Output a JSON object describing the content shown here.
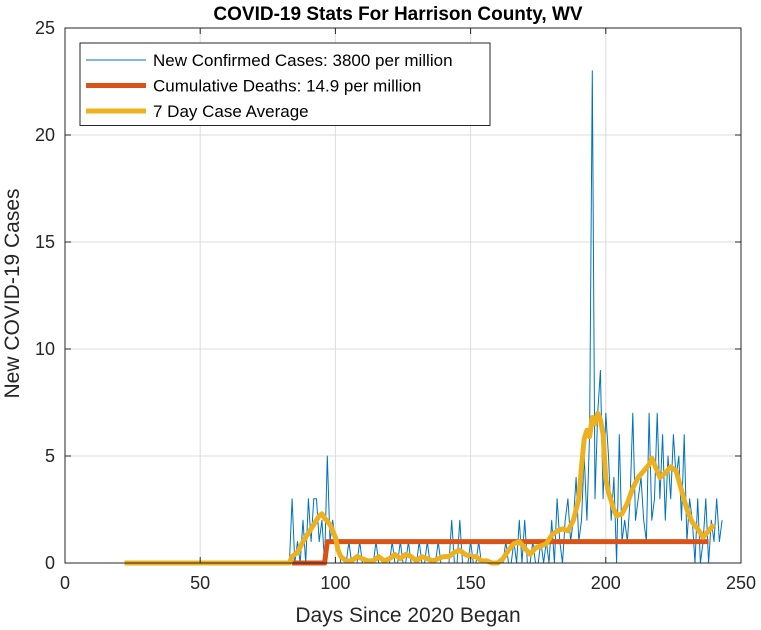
{
  "chart_data": {
    "type": "line",
    "title": "COVID-19 Stats For Harrison County, WV",
    "xlabel": "Days Since 2020 Began",
    "ylabel": "New COVID-19 Cases",
    "xlim": [
      0,
      250
    ],
    "ylim": [
      0,
      25
    ],
    "xticks": [
      0,
      50,
      100,
      150,
      200,
      250
    ],
    "yticks": [
      0,
      5,
      10,
      15,
      20,
      25
    ],
    "grid": true,
    "legend_position": "top-left",
    "series": [
      {
        "name": "New Confirmed Cases: 3800 per million",
        "color": "#0072BD",
        "style": "thin",
        "points": [
          [
            22,
            0
          ],
          [
            82,
            0
          ],
          [
            83,
            0
          ],
          [
            84,
            3
          ],
          [
            85,
            0
          ],
          [
            86,
            1
          ],
          [
            87,
            0
          ],
          [
            88,
            2
          ],
          [
            89,
            0
          ],
          [
            90,
            3
          ],
          [
            91,
            1
          ],
          [
            92,
            3
          ],
          [
            93,
            3
          ],
          [
            94,
            1
          ],
          [
            95,
            2
          ],
          [
            96,
            0
          ],
          [
            97,
            5
          ],
          [
            98,
            1
          ],
          [
            99,
            2
          ],
          [
            100,
            1
          ],
          [
            101,
            1
          ],
          [
            102,
            0
          ],
          [
            103,
            0
          ],
          [
            104,
            0
          ],
          [
            105,
            1
          ],
          [
            106,
            0
          ],
          [
            107,
            0
          ],
          [
            108,
            0
          ],
          [
            109,
            1
          ],
          [
            110,
            0
          ],
          [
            111,
            0
          ],
          [
            112,
            0
          ],
          [
            113,
            0
          ],
          [
            114,
            0
          ],
          [
            115,
            1
          ],
          [
            116,
            0
          ],
          [
            117,
            0
          ],
          [
            118,
            0
          ],
          [
            119,
            0
          ],
          [
            120,
            0
          ],
          [
            121,
            1
          ],
          [
            122,
            0
          ],
          [
            123,
            0
          ],
          [
            124,
            1
          ],
          [
            125,
            0
          ],
          [
            126,
            0
          ],
          [
            127,
            1
          ],
          [
            128,
            0
          ],
          [
            129,
            0
          ],
          [
            130,
            0
          ],
          [
            131,
            1
          ],
          [
            132,
            0
          ],
          [
            133,
            0
          ],
          [
            134,
            1
          ],
          [
            135,
            0
          ],
          [
            136,
            0
          ],
          [
            137,
            0
          ],
          [
            138,
            1
          ],
          [
            139,
            0
          ],
          [
            140,
            0
          ],
          [
            141,
            0
          ],
          [
            142,
            0
          ],
          [
            143,
            2
          ],
          [
            144,
            0
          ],
          [
            145,
            0
          ],
          [
            146,
            2
          ],
          [
            147,
            0
          ],
          [
            148,
            0
          ],
          [
            149,
            0
          ],
          [
            150,
            1
          ],
          [
            151,
            0
          ],
          [
            152,
            0
          ],
          [
            153,
            1
          ],
          [
            154,
            0
          ],
          [
            155,
            0
          ],
          [
            156,
            0
          ],
          [
            157,
            0
          ],
          [
            158,
            0
          ],
          [
            159,
            0
          ],
          [
            160,
            0
          ],
          [
            161,
            0
          ],
          [
            162,
            0
          ],
          [
            163,
            1
          ],
          [
            164,
            0
          ],
          [
            165,
            0
          ],
          [
            166,
            1
          ],
          [
            167,
            0
          ],
          [
            168,
            2
          ],
          [
            169,
            0
          ],
          [
            170,
            2
          ],
          [
            171,
            0
          ],
          [
            172,
            0
          ],
          [
            173,
            1
          ],
          [
            174,
            0
          ],
          [
            175,
            0
          ],
          [
            176,
            1
          ],
          [
            177,
            0
          ],
          [
            178,
            1
          ],
          [
            179,
            0
          ],
          [
            180,
            2
          ],
          [
            181,
            0
          ],
          [
            182,
            3
          ],
          [
            183,
            1
          ],
          [
            184,
            0
          ],
          [
            185,
            2
          ],
          [
            186,
            3
          ],
          [
            187,
            1
          ],
          [
            188,
            2
          ],
          [
            189,
            4
          ],
          [
            190,
            1
          ],
          [
            191,
            2
          ],
          [
            192,
            5
          ],
          [
            193,
            2
          ],
          [
            194,
            6
          ],
          [
            195,
            23
          ],
          [
            196,
            3
          ],
          [
            197,
            7
          ],
          [
            198,
            9
          ],
          [
            199,
            3
          ],
          [
            200,
            7
          ],
          [
            201,
            5
          ],
          [
            202,
            2
          ],
          [
            203,
            4
          ],
          [
            204,
            0
          ],
          [
            205,
            6
          ],
          [
            206,
            1
          ],
          [
            207,
            2
          ],
          [
            208,
            1
          ],
          [
            209,
            3
          ],
          [
            210,
            7
          ],
          [
            211,
            2
          ],
          [
            212,
            3
          ],
          [
            213,
            4
          ],
          [
            214,
            2
          ],
          [
            215,
            1
          ],
          [
            216,
            7
          ],
          [
            217,
            2
          ],
          [
            218,
            3
          ],
          [
            219,
            7
          ],
          [
            220,
            3
          ],
          [
            221,
            6
          ],
          [
            222,
            2
          ],
          [
            223,
            5
          ],
          [
            224,
            3
          ],
          [
            225,
            6
          ],
          [
            226,
            4
          ],
          [
            227,
            5
          ],
          [
            228,
            2
          ],
          [
            229,
            6
          ],
          [
            230,
            1
          ],
          [
            231,
            3
          ],
          [
            232,
            2
          ],
          [
            233,
            0
          ],
          [
            234,
            3
          ],
          [
            235,
            0
          ],
          [
            236,
            1
          ],
          [
            237,
            3
          ],
          [
            238,
            0
          ],
          [
            239,
            2
          ],
          [
            240,
            1
          ],
          [
            241,
            3
          ],
          [
            242,
            1
          ],
          [
            243,
            2
          ]
        ]
      },
      {
        "name": "Cumulative Deaths: 14.9 per million",
        "color": "#D95319",
        "style": "thick",
        "points": [
          [
            84,
            0
          ],
          [
            96,
            0
          ],
          [
            97,
            1
          ],
          [
            238,
            1
          ]
        ]
      },
      {
        "name": "7 Day Case Average",
        "color": "#EDB120",
        "style": "thick",
        "points": [
          [
            22,
            0
          ],
          [
            83,
            0
          ],
          [
            84,
            0.3
          ],
          [
            86,
            0.5
          ],
          [
            88,
            1.0
          ],
          [
            90,
            1.4
          ],
          [
            92,
            1.8
          ],
          [
            94,
            2.2
          ],
          [
            95,
            2.3
          ],
          [
            96,
            2.1
          ],
          [
            98,
            1.8
          ],
          [
            100,
            1.2
          ],
          [
            101,
            0.6
          ],
          [
            102,
            0.3
          ],
          [
            104,
            0.1
          ],
          [
            106,
            0.1
          ],
          [
            108,
            0.3
          ],
          [
            110,
            0.2
          ],
          [
            112,
            0.1
          ],
          [
            114,
            0.1
          ],
          [
            116,
            0.3
          ],
          [
            118,
            0.1
          ],
          [
            120,
            0.2
          ],
          [
            122,
            0.4
          ],
          [
            124,
            0.2
          ],
          [
            126,
            0.4
          ],
          [
            128,
            0.3
          ],
          [
            130,
            0.1
          ],
          [
            132,
            0.3
          ],
          [
            134,
            0.2
          ],
          [
            136,
            0.1
          ],
          [
            138,
            0.2
          ],
          [
            140,
            0.3
          ],
          [
            142,
            0.3
          ],
          [
            144,
            0.5
          ],
          [
            146,
            0.6
          ],
          [
            148,
            0.4
          ],
          [
            150,
            0.3
          ],
          [
            152,
            0.3
          ],
          [
            154,
            0.1
          ],
          [
            156,
            0.1
          ],
          [
            158,
            0.0
          ],
          [
            160,
            0.0
          ],
          [
            162,
            0.2
          ],
          [
            164,
            0.6
          ],
          [
            166,
            0.9
          ],
          [
            168,
            1.0
          ],
          [
            170,
            0.7
          ],
          [
            172,
            0.4
          ],
          [
            174,
            0.7
          ],
          [
            176,
            0.8
          ],
          [
            178,
            0.9
          ],
          [
            180,
            1.3
          ],
          [
            182,
            1.5
          ],
          [
            184,
            1.6
          ],
          [
            186,
            1.5
          ],
          [
            188,
            2.0
          ],
          [
            190,
            3.0
          ],
          [
            191,
            4.5
          ],
          [
            192,
            5.8
          ],
          [
            193,
            6.2
          ],
          [
            194,
            5.9
          ],
          [
            195,
            6.8
          ],
          [
            196,
            6.5
          ],
          [
            197,
            7.0
          ],
          [
            198,
            6.7
          ],
          [
            199,
            6.0
          ],
          [
            200,
            3.9
          ],
          [
            201,
            3.3
          ],
          [
            202,
            2.9
          ],
          [
            203,
            2.5
          ],
          [
            204,
            2.2
          ],
          [
            206,
            2.3
          ],
          [
            208,
            2.8
          ],
          [
            210,
            3.5
          ],
          [
            212,
            4.0
          ],
          [
            214,
            4.3
          ],
          [
            216,
            4.6
          ],
          [
            217,
            4.9
          ],
          [
            218,
            4.6
          ],
          [
            220,
            4.0
          ],
          [
            222,
            4.2
          ],
          [
            224,
            4.5
          ],
          [
            226,
            4.3
          ],
          [
            228,
            3.4
          ],
          [
            230,
            2.5
          ],
          [
            232,
            1.9
          ],
          [
            234,
            1.6
          ],
          [
            236,
            1.2
          ],
          [
            238,
            1.5
          ],
          [
            240,
            1.8
          ]
        ]
      }
    ]
  }
}
